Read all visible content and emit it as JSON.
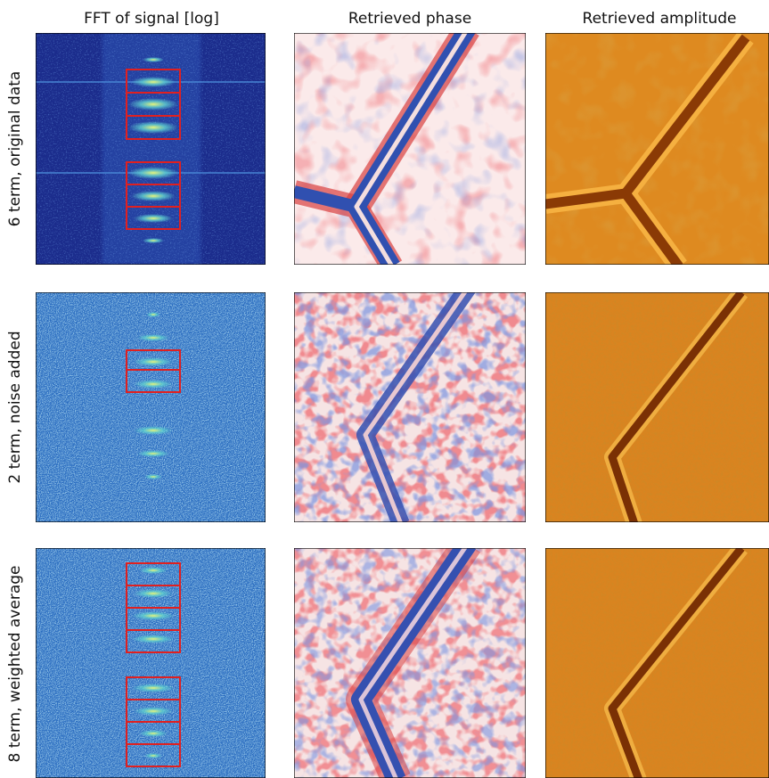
{
  "column_headers": [
    "FFT of signal [log]",
    "Retrieved phase",
    "Retrieved amplitude"
  ],
  "row_labels": [
    "6 term, original data",
    "2 term, noise added",
    "8 term, weighted average"
  ]
}
